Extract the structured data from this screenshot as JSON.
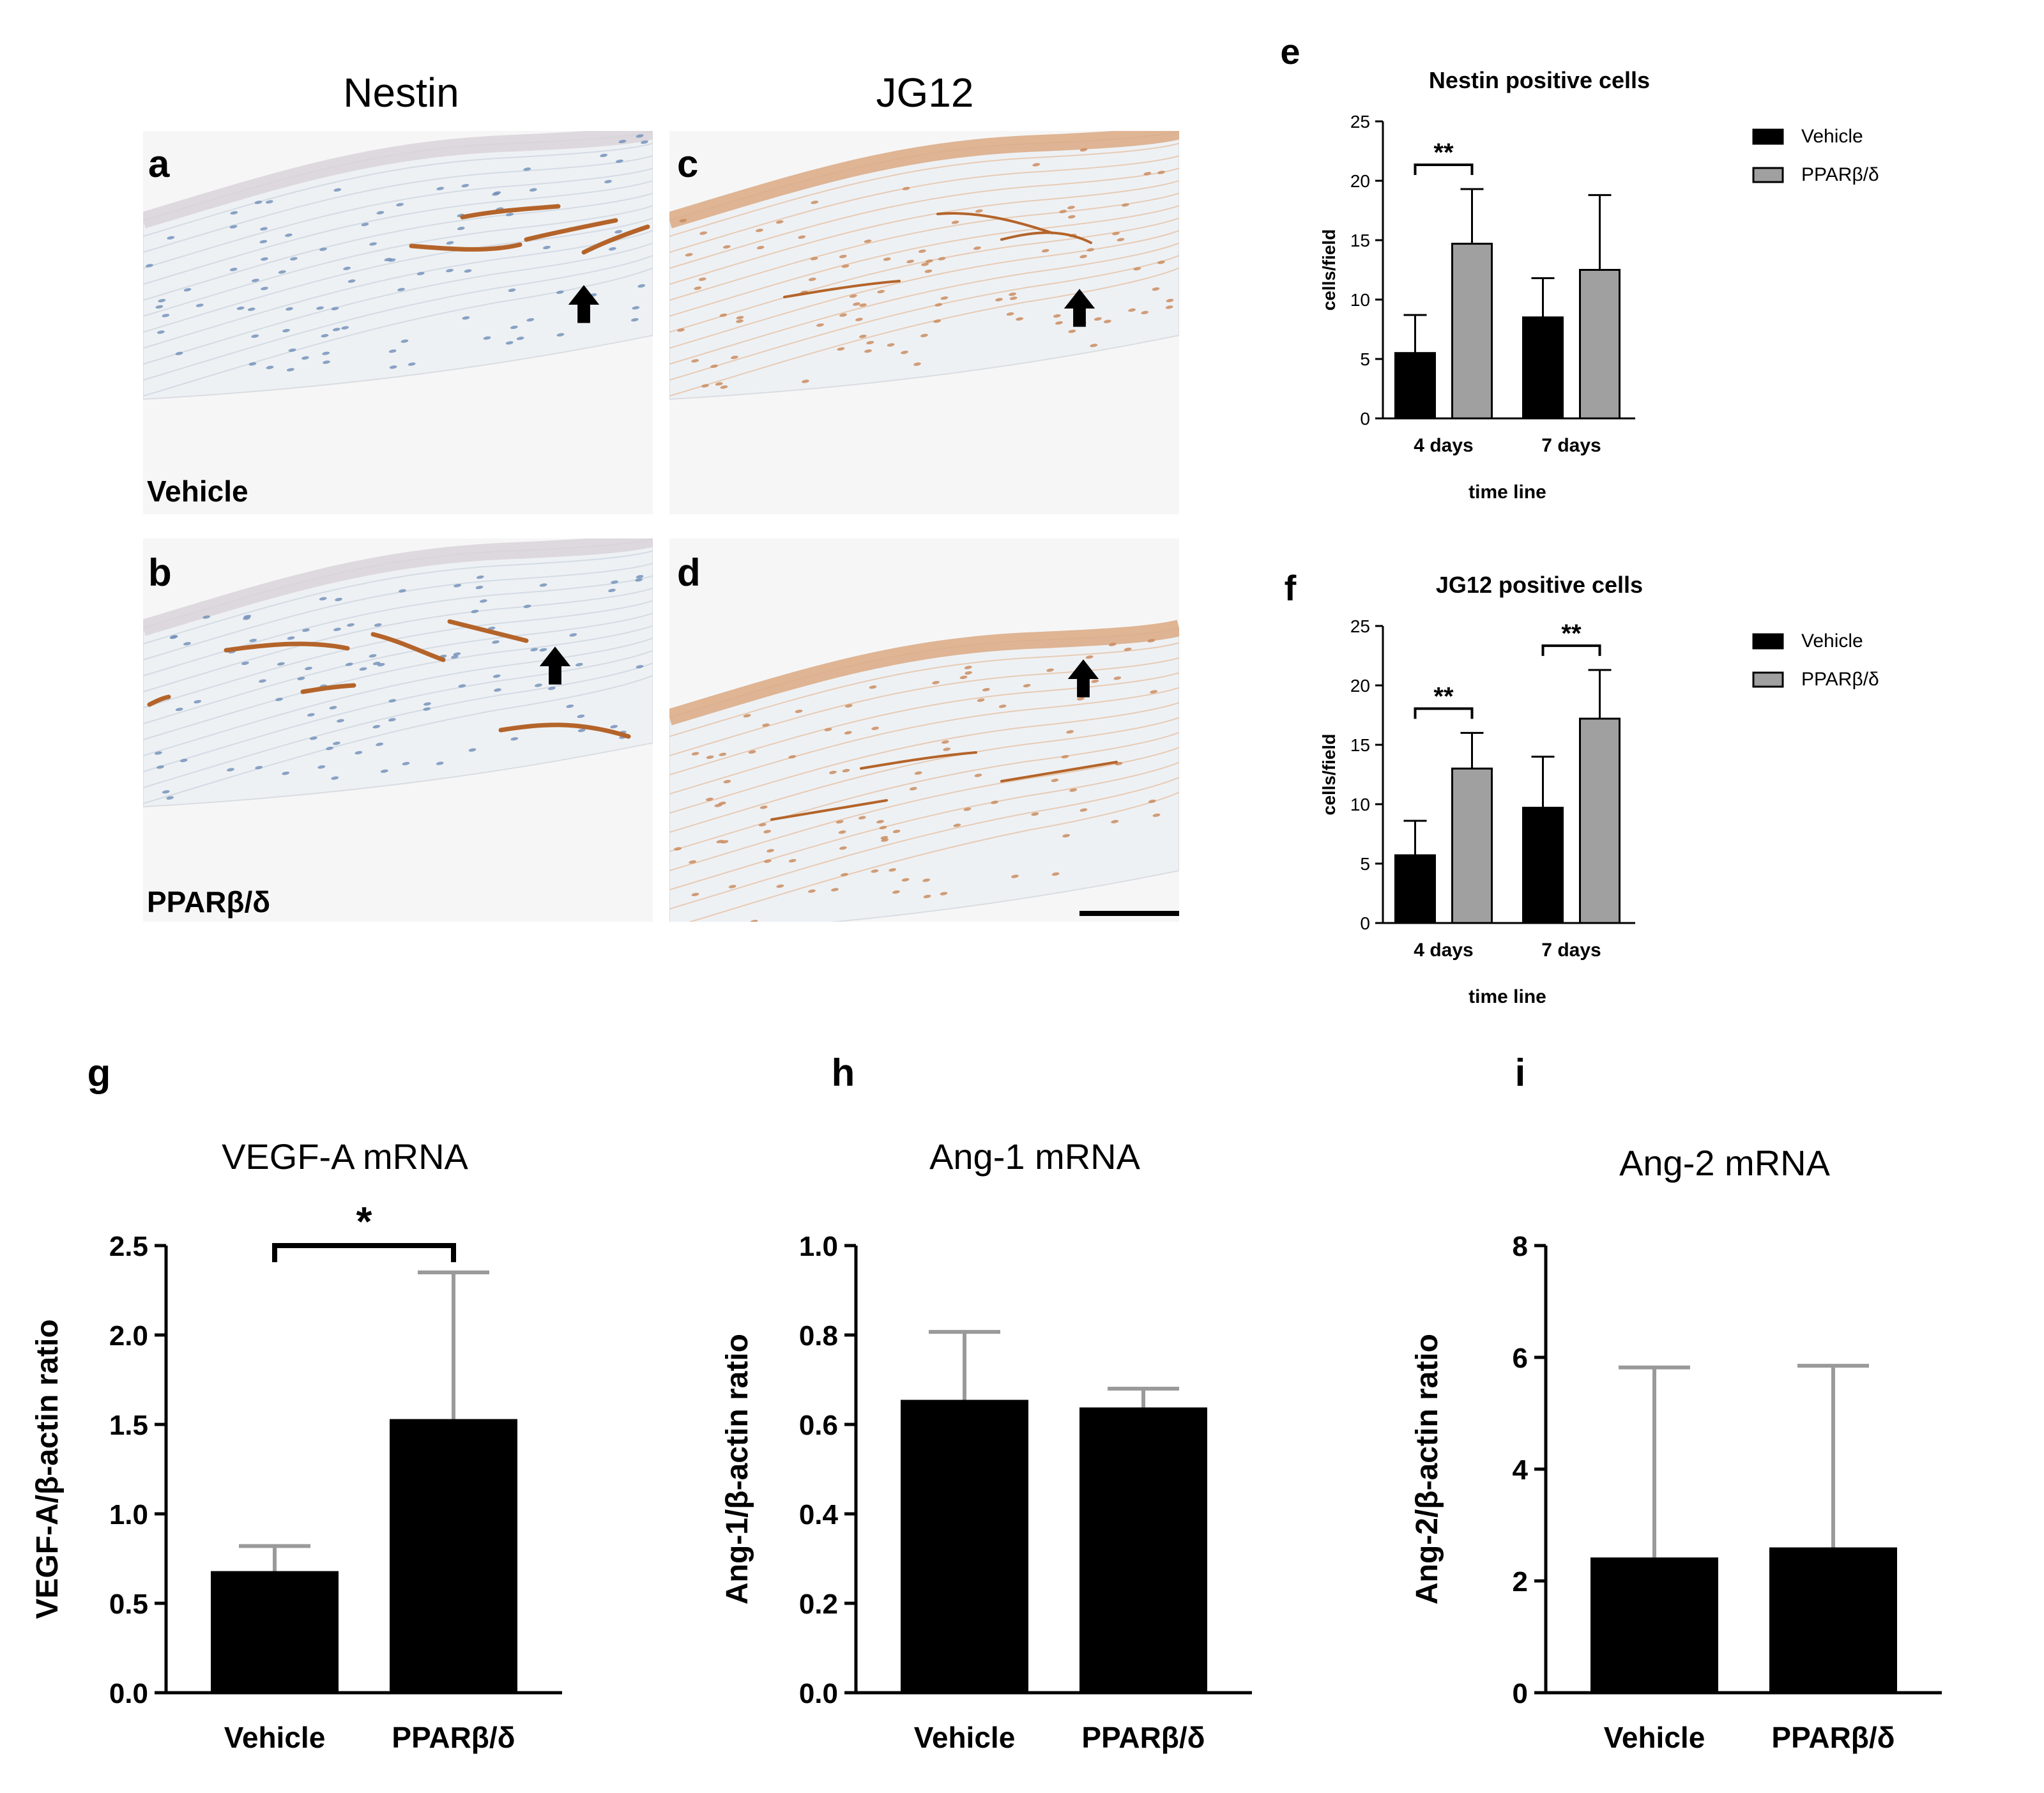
{
  "micrographs": {
    "col_headers": [
      "Nestin",
      "JG12"
    ],
    "panels": [
      {
        "letter": "a",
        "condition": "Vehicle"
      },
      {
        "letter": "b",
        "condition": "PPARβ/δ"
      },
      {
        "letter": "c",
        "condition": ""
      },
      {
        "letter": "d",
        "condition": ""
      }
    ],
    "colors": {
      "tissue": "#eef1f4",
      "stain": "#b4642a",
      "nuclei": "#6f8fb8",
      "background": "#f6f6f6"
    }
  },
  "legend_labels": [
    "Vehicle",
    "PPARβ/δ"
  ],
  "chart_data": [
    {
      "panel": "e",
      "type": "bar",
      "title": "Nestin positive cells",
      "xlabel": "time line",
      "ylabel": "cells/field",
      "categories": [
        "4 days",
        "7 days"
      ],
      "series": [
        {
          "name": "Vehicle",
          "values": [
            5.5,
            8.5
          ],
          "error": [
            3.2,
            3.3
          ],
          "color": "#000000"
        },
        {
          "name": "PPARβ/δ",
          "values": [
            14.7,
            12.5
          ],
          "error": [
            4.6,
            6.3
          ],
          "color": "#a0a0a0"
        }
      ],
      "ylim": [
        0,
        25
      ],
      "yticks": [
        0,
        5,
        10,
        15,
        20,
        25
      ],
      "significance": [
        {
          "category": "4 days",
          "label": "**"
        }
      ]
    },
    {
      "panel": "f",
      "type": "bar",
      "title": "JG12 positive cells",
      "xlabel": "time line",
      "ylabel": "cells/field",
      "categories": [
        "4 days",
        "7 days"
      ],
      "series": [
        {
          "name": "Vehicle",
          "values": [
            5.7,
            9.7
          ],
          "error": [
            2.9,
            4.3
          ],
          "color": "#000000"
        },
        {
          "name": "PPARβ/δ",
          "values": [
            13.0,
            17.2
          ],
          "error": [
            3.0,
            4.1
          ],
          "color": "#a0a0a0"
        }
      ],
      "ylim": [
        0,
        25
      ],
      "yticks": [
        0,
        5,
        10,
        15,
        20,
        25
      ],
      "significance": [
        {
          "category": "4 days",
          "label": "**"
        },
        {
          "category": "7 days",
          "label": "**"
        }
      ]
    },
    {
      "panel": "g",
      "type": "bar",
      "title": "VEGF-A mRNA",
      "xlabel": "",
      "ylabel": "VEGF-A/β-actin ratio",
      "categories": [
        "Vehicle",
        "PPARβ/δ"
      ],
      "values": [
        0.68,
        1.53
      ],
      "error": [
        0.14,
        0.82
      ],
      "ylim": [
        0,
        2.5
      ],
      "yticks": [
        "0.0",
        "0.5",
        "1.0",
        "1.5",
        "2.0",
        "2.5"
      ],
      "significance": [
        {
          "label": "*"
        }
      ]
    },
    {
      "panel": "h",
      "type": "bar",
      "title": "Ang-1 mRNA",
      "xlabel": "",
      "ylabel": "Ang-1/β-actin ratio",
      "categories": [
        "Vehicle",
        "PPARβ/δ"
      ],
      "values": [
        0.655,
        0.638
      ],
      "error": [
        0.152,
        0.042
      ],
      "ylim": [
        0,
        1.0
      ],
      "yticks": [
        "0.0",
        "0.2",
        "0.4",
        "0.6",
        "0.8",
        "1.0"
      ],
      "significance": []
    },
    {
      "panel": "i",
      "type": "bar",
      "title": "Ang-2 mRNA",
      "xlabel": "",
      "ylabel": "Ang-2/β-actin ratio",
      "categories": [
        "Vehicle",
        "PPARβ/δ"
      ],
      "values": [
        2.42,
        2.6
      ],
      "error": [
        3.4,
        3.25
      ],
      "ylim": [
        0,
        8
      ],
      "yticks": [
        "0",
        "2",
        "4",
        "6",
        "8"
      ],
      "significance": []
    }
  ]
}
